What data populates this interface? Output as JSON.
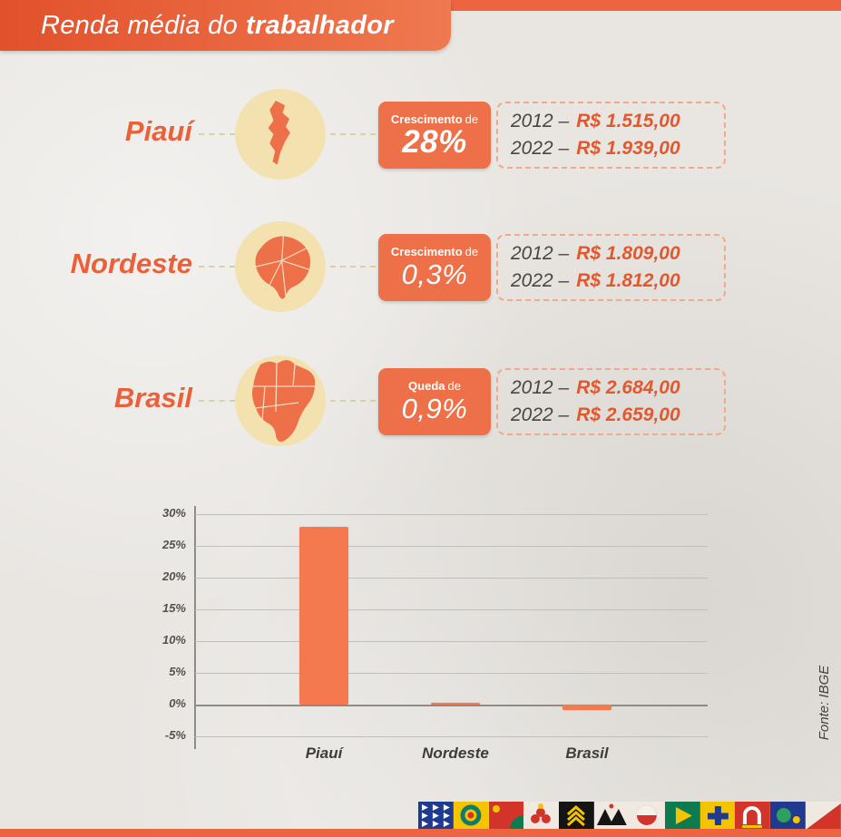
{
  "title": {
    "regular": "Renda média do",
    "bold": "trabalhador"
  },
  "rows": [
    {
      "region": "Piauí",
      "badge_title": "Crescimento",
      "badge_connector": "de",
      "badge_value": "28%",
      "line1_year": "2012 –",
      "line1_value": "R$ 1.515,00",
      "line2_year": "2022 –",
      "line2_value": "R$ 1.939,00"
    },
    {
      "region": "Nordeste",
      "badge_title": "Crescimento",
      "badge_connector": "de",
      "badge_value": "0,3%",
      "line1_year": "2012 –",
      "line1_value": "R$ 1.809,00",
      "line2_year": "2022 –",
      "line2_value": "R$ 1.812,00"
    },
    {
      "region": "Brasil",
      "badge_title": "Queda",
      "badge_connector": "de",
      "badge_value": "0,9%",
      "line1_year": "2012 –",
      "line1_value": "R$ 2.684,00",
      "line2_year": "2022 –",
      "line2_value": "R$ 2.659,00"
    }
  ],
  "chart_data": {
    "type": "bar",
    "title": "",
    "xlabel": "",
    "ylabel": "",
    "categories": [
      "Piauí",
      "Nordeste",
      "Brasil"
    ],
    "values": [
      28,
      0.3,
      -0.9
    ],
    "ylim": [
      -5,
      30
    ],
    "yticks": [
      30,
      25,
      20,
      15,
      10,
      5,
      0,
      -5
    ],
    "ytick_labels": [
      "30%",
      "25%",
      "20%",
      "15%",
      "10%",
      "5%",
      "0%",
      "-5%"
    ],
    "grid": true,
    "legend": false,
    "bar_color": "#f4794f"
  },
  "footer": {
    "source": "Fonte: IBGE"
  },
  "colors": {
    "accent": "#ec6440",
    "badge": "#ed7049",
    "bar": "#f4794f",
    "circle_bg": "#f3e2b0",
    "background": "#e9e6e2",
    "money_text": "#e2582e",
    "dark_text": "#4a453f"
  }
}
